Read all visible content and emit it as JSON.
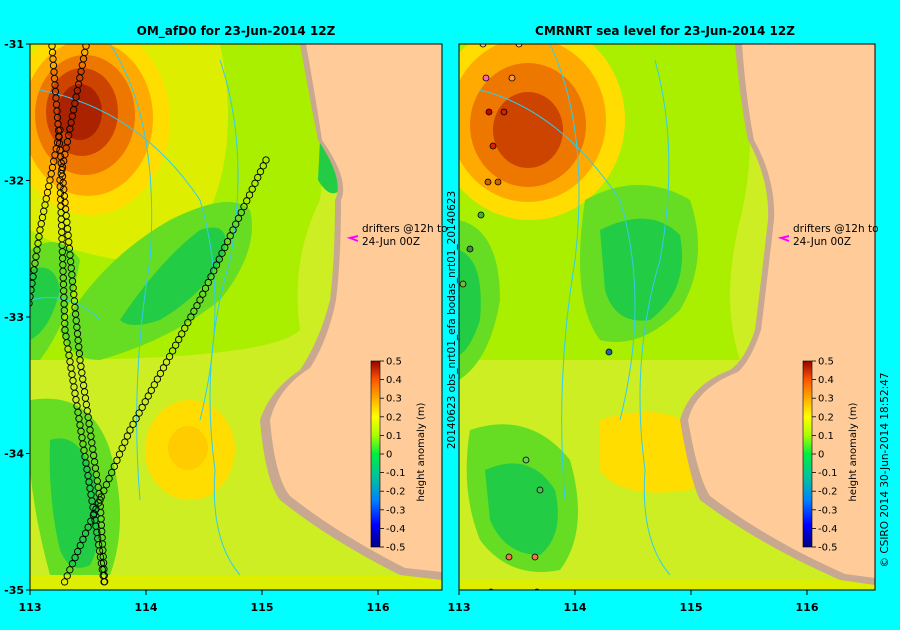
{
  "panels": [
    {
      "id": "left",
      "title": "OM_afD0 for 23-Jun-2014 12Z",
      "annotation_line1": "drifters @12h to",
      "annotation_line2": "24-Jun 00Z",
      "colorbar_label": "height anomaly (m)",
      "colorbar_ticks": [
        "0.5",
        "0.4",
        "0.3",
        "0.2",
        "0.1",
        "0",
        "-0.1",
        "-0.2",
        "-0.3",
        "-0.4",
        "-0.5"
      ],
      "x_ticks": [
        "113",
        "114",
        "115",
        "116"
      ],
      "y_ticks": [
        "-31",
        "-32",
        "-33",
        "-34",
        "-35"
      ]
    },
    {
      "id": "right",
      "title": "CMRNRT sea level  for 23-Jun-2014 12Z",
      "side_label": "20140623 obs_nrt01_efa   bodas_nrt01_20140623",
      "annotation_line1": "drifters @12h to",
      "annotation_line2": "24-Jun 00Z",
      "colorbar_label": "height anomaly (m)",
      "colorbar_ticks": [
        "0.5",
        "0.4",
        "0.3",
        "0.2",
        "0.1",
        "0",
        "-0.1",
        "-0.2",
        "-0.3",
        "-0.4",
        "-0.5"
      ],
      "x_ticks": [
        "113",
        "114",
        "115",
        "116"
      ]
    }
  ],
  "credit": "© CSIRO 2014   30-Jun-2014 18:52:47",
  "map_extent": {
    "lon": [
      113,
      116.7
    ],
    "lat": [
      -35,
      -31
    ]
  },
  "colors": {
    "background": "#00ffff",
    "land": "#ffcc99",
    "coast_shelf": "#c8a890",
    "contour_line": "#33ccee",
    "drifter_marker": "#000000",
    "arrow": "#ff00ff"
  }
}
